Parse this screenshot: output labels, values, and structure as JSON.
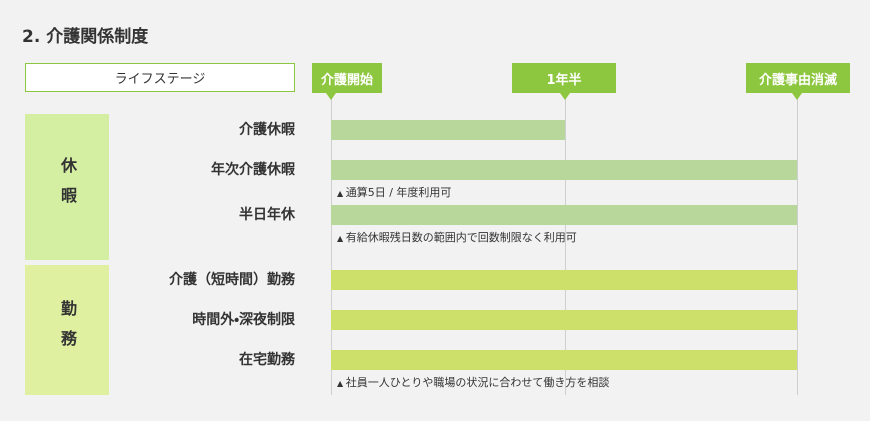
{
  "title": "2. 介護関係制度",
  "life_stage_label": "ライフステージ",
  "milestones": [
    "介護開始",
    "1年半",
    "介護事由消滅"
  ],
  "groups": [
    {
      "label": "休暇",
      "rows": [
        {
          "label": "介護休暇"
        },
        {
          "label": "年次介護休暇",
          "note": "通算5日 / 年度利用可"
        },
        {
          "label": "半日年休",
          "note": "有給休暇残日数の範囲内で回数制限なく利用可"
        }
      ]
    },
    {
      "label": "勤務",
      "rows": [
        {
          "label": "介護（短時間）勤務"
        },
        {
          "label": "時間外・深夜制限"
        },
        {
          "label": "在宅勤務",
          "note": "社員一人ひとりや職場の状況に合わせて働き方を相談"
        }
      ]
    }
  ]
}
